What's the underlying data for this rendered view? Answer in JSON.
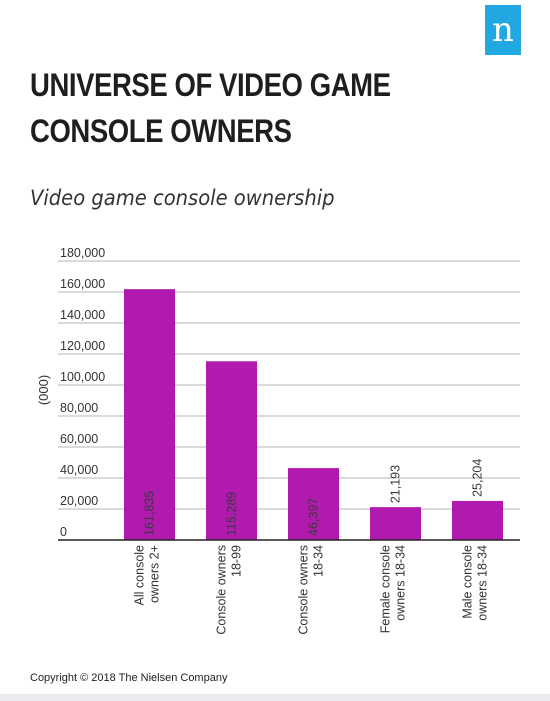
{
  "logo": {
    "letter": "n",
    "icon": "nielsen-logo-icon",
    "color": "#22a8e1"
  },
  "title": "UNIVERSE OF VIDEO GAME CONSOLE OWNERS",
  "subtitle": "Video game console ownership",
  "copyright": "Copyright © 2018 The Nielsen Company",
  "chart_data": {
    "type": "bar",
    "ylabel": "(000)",
    "ylim": [
      0,
      180000
    ],
    "yticks": [
      "0",
      "20,000",
      "40,000",
      "60,000",
      "80,000",
      "100,000",
      "120,000",
      "140,000",
      "160,000",
      "180,000"
    ],
    "ytick_values": [
      0,
      20000,
      40000,
      60000,
      80000,
      100000,
      120000,
      140000,
      160000,
      180000
    ],
    "categories": [
      [
        "All console",
        "owners 2+"
      ],
      [
        "Console owners",
        "18-99"
      ],
      [
        "Console owners",
        "18-34"
      ],
      [
        "Female console",
        "owners 18-34"
      ],
      [
        "Male console",
        "owners 18-34"
      ]
    ],
    "values": [
      161835,
      115289,
      46397,
      21193,
      25204
    ],
    "value_labels": [
      "161,835",
      "115,289",
      "46,397",
      "21,193",
      "25,204"
    ],
    "bar_color": "#b01aaf",
    "grid": true
  }
}
